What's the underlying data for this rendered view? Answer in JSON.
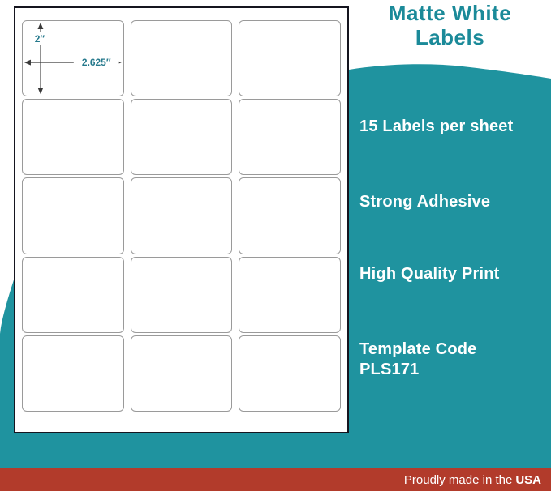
{
  "title": {
    "line1": "Matte White",
    "line2": "Labels"
  },
  "features": [
    {
      "lines": [
        "15 Labels per sheet"
      ]
    },
    {
      "lines": [
        "Strong Adhesive"
      ]
    },
    {
      "lines": [
        "High Quality Print"
      ]
    },
    {
      "lines": [
        "Template Code",
        "PLS171"
      ]
    }
  ],
  "sheet": {
    "rows": 5,
    "cols": 3,
    "label_count": 15,
    "dimensions": {
      "height": "2″",
      "width": "2.625″"
    }
  },
  "footer": {
    "prefix": "Proudly made in the",
    "bold": "USA"
  },
  "colors": {
    "teal": "#1f939f",
    "red": "#b23b2b",
    "title_text": "#1b8a99",
    "dimension_text": "#25798c",
    "label_border": "#9a9a9a",
    "sheet_border": "#15151f",
    "feature_text": "#ffffff"
  }
}
